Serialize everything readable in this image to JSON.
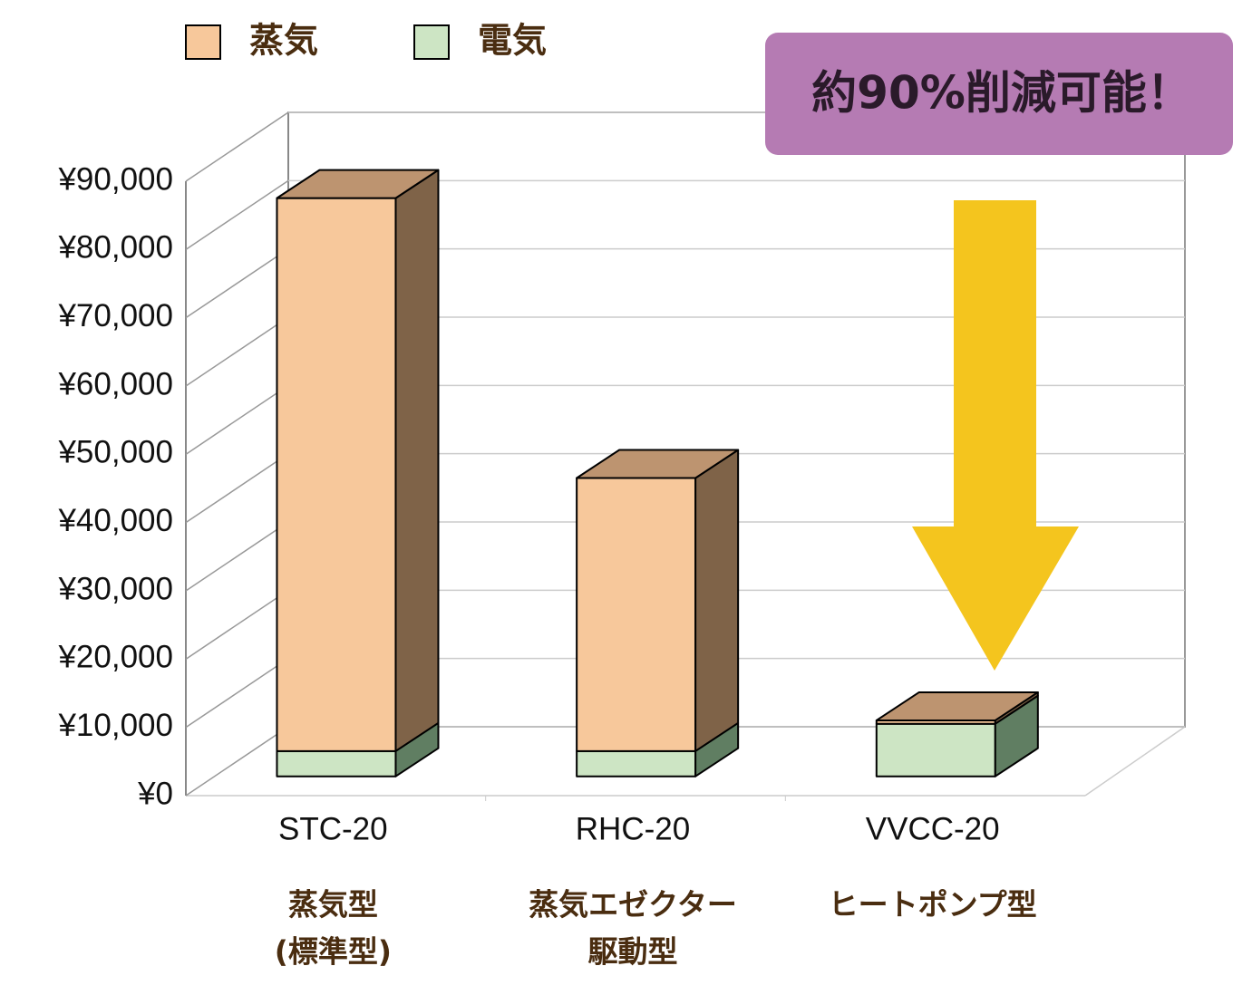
{
  "chart_data": {
    "type": "bar3d_stacked",
    "categories": [
      "STC-20",
      "RHC-20",
      "VVCC-20"
    ],
    "category_descriptions": [
      [
        "蒸気型",
        "(標準型)"
      ],
      [
        "蒸気エゼクター",
        "駆動型"
      ],
      [
        "ヒートポンプ型"
      ]
    ],
    "series": [
      {
        "name": "電気",
        "color": "#cde5c4",
        "side_color": "#607e62",
        "top_color": "#a9c7a0",
        "values": [
          3700,
          3700,
          7700
        ]
      },
      {
        "name": "蒸気",
        "color": "#f7c89b",
        "side_color": "#7f6348",
        "top_color": "#bd9470",
        "values": [
          81000,
          40000,
          500
        ]
      }
    ],
    "legend_order": [
      1,
      0
    ],
    "ylim": [
      0,
      90000
    ],
    "yticks": [
      {
        "value": 0,
        "label": "¥0"
      },
      {
        "value": 10000,
        "label": "¥10,000"
      },
      {
        "value": 20000,
        "label": "¥20,000"
      },
      {
        "value": 30000,
        "label": "¥30,000"
      },
      {
        "value": 40000,
        "label": "¥40,000"
      },
      {
        "value": 50000,
        "label": "¥50,000"
      },
      {
        "value": 60000,
        "label": "¥60,000"
      },
      {
        "value": 70000,
        "label": "¥70,000"
      },
      {
        "value": 80000,
        "label": "¥80,000"
      },
      {
        "value": 90000,
        "label": "¥90,000"
      }
    ],
    "grid": true,
    "annotation": "約90%削減可能！"
  }
}
